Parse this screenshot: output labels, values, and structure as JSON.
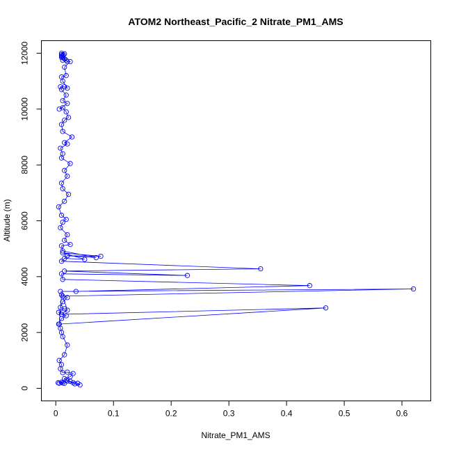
{
  "chart_data": {
    "type": "line",
    "title": "ATOM2 Northeast_Pacific_2 Nitrate_PM1_AMS",
    "xlabel": "Nitrate_PM1_AMS",
    "ylabel": "Altitude (m)",
    "xlim": [
      -0.025,
      0.65
    ],
    "ylim": [
      -450,
      12450
    ],
    "x_ticks": [
      0,
      0.1,
      0.2,
      0.3,
      0.4,
      0.5,
      0.6
    ],
    "y_ticks": [
      0,
      2000,
      4000,
      6000,
      8000,
      10000,
      12000
    ],
    "grid": false,
    "legend": "none",
    "colors": {
      "series": "#0000ff"
    },
    "series": [
      {
        "x": [
          0.006,
          0.012,
          0.004,
          0.015,
          0.01,
          0.018,
          0.025,
          0.03,
          0.038,
          0.042,
          0.033,
          0.02,
          0.015,
          0.025,
          0.03,
          0.02,
          0.012,
          0.008,
          0.01,
          0.006,
          0.015,
          0.02,
          0.012,
          0.01,
          0.008,
          0.005,
          0.01,
          0.018,
          0.01,
          0.005,
          0.015,
          0.008,
          0.012,
          0.02,
          0.01,
          0.006,
          0.468,
          0.01,
          0.02,
          0.012,
          0.62,
          0.008,
          0.035,
          0.44,
          0.012,
          0.01,
          0.228,
          0.015,
          0.355,
          0.01,
          0.02,
          0.078,
          0.012,
          0.05,
          0.015,
          0.02,
          0.07,
          0.012,
          0.01,
          0.025,
          0.015,
          0.02,
          0.008,
          0.012,
          0.018,
          0.01,
          0.005,
          0.015,
          0.022,
          0.012,
          0.01,
          0.02,
          0.015,
          0.025,
          0.01,
          0.012,
          0.008,
          0.02,
          0.015,
          0.028,
          0.012,
          0.01,
          0.015,
          0.022,
          0.018,
          0.012,
          0.006,
          0.02,
          0.012,
          0.018,
          0.01,
          0.008,
          0.015,
          0.02,
          0.012,
          0.01,
          0.018,
          0.015,
          0.025,
          0.012,
          0.01,
          0.015,
          0.012,
          0.01,
          0.018,
          0.02,
          0.015,
          0.012,
          0.01,
          0.013,
          0.015,
          0.01
        ],
        "y": [
          180,
          190,
          200,
          180,
          220,
          300,
          250,
          200,
          180,
          120,
          160,
          260,
          350,
          420,
          530,
          580,
          560,
          700,
          850,
          1000,
          1200,
          1550,
          1850,
          2000,
          2150,
          2300,
          2500,
          2600,
          2650,
          2720,
          2850,
          2900,
          3100,
          3250,
          3350,
          2300,
          2880,
          2650,
          2800,
          3300,
          3560,
          3470,
          3470,
          3680,
          3900,
          4100,
          4040,
          4200,
          4280,
          4550,
          4750,
          4730,
          4850,
          4620,
          4650,
          4750,
          4680,
          4920,
          5100,
          5150,
          5300,
          5500,
          5750,
          5950,
          6050,
          6200,
          6500,
          6700,
          6950,
          7150,
          7350,
          7600,
          7800,
          8050,
          8250,
          8400,
          8600,
          8750,
          8800,
          9000,
          9200,
          9450,
          9600,
          9700,
          9900,
          10050,
          10000,
          10200,
          10300,
          10500,
          10700,
          10800,
          10800,
          10750,
          11000,
          11150,
          11200,
          11500,
          11700,
          11750,
          11850,
          11800,
          11900,
          11950,
          11750,
          11700,
          11800,
          11850,
          11900,
          11950,
          11980,
          12000
        ]
      }
    ]
  }
}
